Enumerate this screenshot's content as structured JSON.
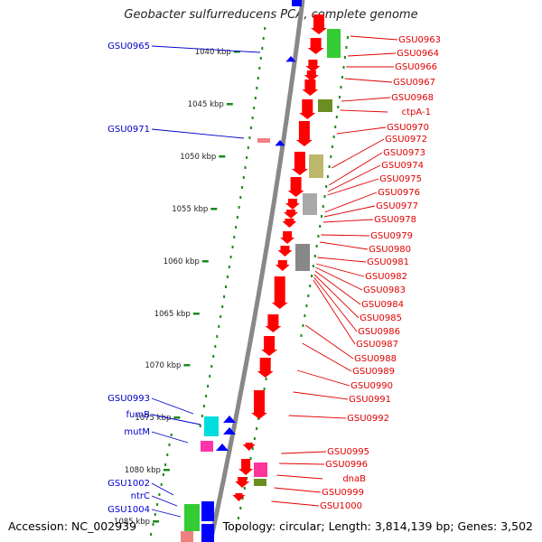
{
  "title": "Geobacter sulfurreducens PCA, complete genome",
  "accession": "Accession: NC_002939",
  "topology": "Topology: circular; Length: 3,814,139 bp; Genes: 3,502",
  "colors": {
    "backbone": "#888888",
    "tick": "#1a8a1a",
    "right_label": "#e00000",
    "left_label": "#0000cc",
    "forward_gene": "#ff0000",
    "reverse_gene": "#0000ff"
  },
  "kbp_ticks": [
    "1040 kbp",
    "1045 kbp",
    "1050 kbp",
    "1055 kbp",
    "1060 kbp",
    "1065 kbp",
    "1070 kbp",
    "1075 kbp",
    "1080 kbp",
    "1085 kbp"
  ],
  "right_labels": [
    "GSU0963",
    "GSU0964",
    "GSU0966",
    "GSU0967",
    "GSU0968",
    "ctpA-1",
    "GSU0970",
    "GSU0972",
    "GSU0973",
    "GSU0974",
    "GSU0975",
    "GSU0976",
    "GSU0977",
    "GSU0978",
    "GSU0979",
    "GSU0980",
    "GSU0981",
    "GSU0982",
    "GSU0983",
    "GSU0984",
    "GSU0985",
    "GSU0986",
    "GSU0987",
    "GSU0988",
    "GSU0989",
    "GSU0990",
    "GSU0991",
    "GSU0992",
    "GSU0995",
    "GSU0996",
    "dnaB",
    "GSU0999",
    "GSU1000"
  ],
  "left_labels": [
    "GSU0965",
    "GSU0971",
    "GSU0993",
    "fumB",
    "mutM",
    "GSU1002",
    "ntrC",
    "GSU1004"
  ]
}
